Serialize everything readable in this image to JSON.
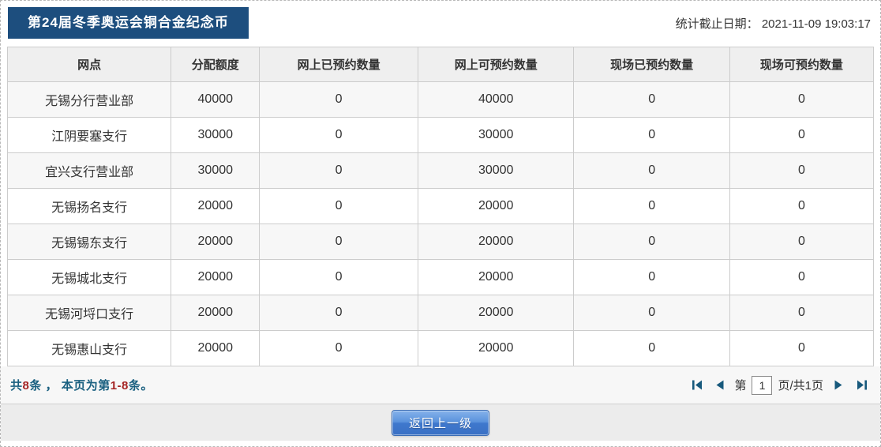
{
  "header": {
    "title": "第24届冬季奥运会铜合金纪念币",
    "stats_label": "统计截止日期：",
    "stats_datetime": "2021-11-09 19:03:17"
  },
  "table": {
    "columns": [
      "网点",
      "分配额度",
      "网上已预约数量",
      "网上可预约数量",
      "现场已预约数量",
      "现场可预约数量"
    ],
    "rows": [
      [
        "无锡分行营业部",
        "40000",
        "0",
        "40000",
        "0",
        "0"
      ],
      [
        "江阴要塞支行",
        "30000",
        "0",
        "30000",
        "0",
        "0"
      ],
      [
        "宜兴支行营业部",
        "30000",
        "0",
        "30000",
        "0",
        "0"
      ],
      [
        "无锡扬名支行",
        "20000",
        "0",
        "20000",
        "0",
        "0"
      ],
      [
        "无锡锡东支行",
        "20000",
        "0",
        "20000",
        "0",
        "0"
      ],
      [
        "无锡城北支行",
        "20000",
        "0",
        "20000",
        "0",
        "0"
      ],
      [
        "无锡河埒口支行",
        "20000",
        "0",
        "20000",
        "0",
        "0"
      ],
      [
        "无锡惠山支行",
        "20000",
        "0",
        "20000",
        "0",
        "0"
      ]
    ]
  },
  "footer": {
    "summary": {
      "prefix": "共",
      "total": "8",
      "middle": "条 ， 本页为第",
      "range": "1-8",
      "suffix": "条。"
    },
    "pagination": {
      "label_before": "第",
      "current_page": "1",
      "label_after": "页/共1页",
      "first_icon": "first-page-icon",
      "prev_icon": "prev-page-icon",
      "next_icon": "next-page-icon",
      "last_icon": "last-page-icon"
    }
  },
  "actions": {
    "back_button": "返回上一级"
  },
  "colors": {
    "title-bar-bg": "#1d4e7e",
    "summary-text": "#1a6080",
    "summary-number": "#a42424",
    "pagination-arrow": "#17597c",
    "button-border": "#3a6cb4"
  }
}
